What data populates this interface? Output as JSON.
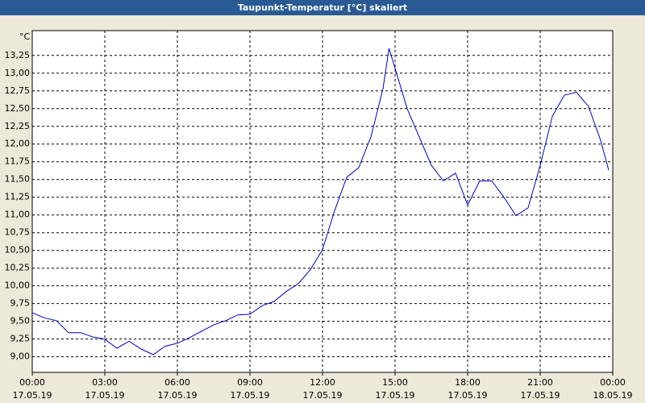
{
  "chart_data": {
    "type": "line",
    "title": "Taupunkt-Temperatur [°C] skaliert",
    "y_unit": "°C",
    "x": [
      "17.05.19 00:00",
      "17.05.19 00:30",
      "17.05.19 01:00",
      "17.05.19 01:30",
      "17.05.19 02:00",
      "17.05.19 02:30",
      "17.05.19 03:00",
      "17.05.19 03:30",
      "17.05.19 04:00",
      "17.05.19 04:30",
      "17.05.19 05:00",
      "17.05.19 05:30",
      "17.05.19 06:00",
      "17.05.19 06:30",
      "17.05.19 07:00",
      "17.05.19 07:30",
      "17.05.19 08:00",
      "17.05.19 08:30",
      "17.05.19 09:00",
      "17.05.19 09:30",
      "17.05.19 10:00",
      "17.05.19 10:30",
      "17.05.19 11:00",
      "17.05.19 11:30",
      "17.05.19 12:00",
      "17.05.19 12:30",
      "17.05.19 13:00",
      "17.05.19 13:30",
      "17.05.19 14:00",
      "17.05.19 14:30",
      "17.05.19 14:45",
      "17.05.19 15:00",
      "17.05.19 15:30",
      "17.05.19 16:00",
      "17.05.19 16:30",
      "17.05.19 17:00",
      "17.05.19 17:30",
      "17.05.19 18:00",
      "17.05.19 18:30",
      "17.05.19 19:00",
      "17.05.19 19:30",
      "17.05.19 20:00",
      "17.05.19 20:30",
      "17.05.19 21:00",
      "17.05.19 21:30",
      "17.05.19 22:00",
      "17.05.19 22:30",
      "17.05.19 23:00",
      "17.05.19 23:30",
      "17.05.19 23:50"
    ],
    "series": [
      {
        "name": "Taupunkt-Temperatur",
        "color": "#0000c0",
        "values": [
          9.62,
          9.55,
          9.51,
          9.34,
          9.34,
          9.28,
          9.25,
          9.12,
          9.22,
          9.11,
          9.03,
          9.15,
          9.19,
          9.27,
          9.36,
          9.45,
          9.51,
          9.59,
          9.6,
          9.72,
          9.78,
          9.92,
          10.03,
          10.23,
          10.51,
          11.06,
          11.53,
          11.67,
          12.1,
          12.78,
          13.35,
          13.07,
          12.5,
          12.1,
          11.7,
          11.48,
          11.59,
          11.14,
          11.48,
          11.48,
          11.25,
          10.99,
          11.1,
          11.7,
          12.39,
          12.69,
          12.73,
          12.53,
          12.05,
          11.63
        ]
      }
    ],
    "ylim": [
      8.78,
      13.6
    ],
    "yticks": [
      {
        "value": 9.0,
        "label": "9,00"
      },
      {
        "value": 9.25,
        "label": "9,25"
      },
      {
        "value": 9.5,
        "label": "9,50"
      },
      {
        "value": 9.75,
        "label": "9,75"
      },
      {
        "value": 10.0,
        "label": "10,00"
      },
      {
        "value": 10.25,
        "label": "10,25"
      },
      {
        "value": 10.5,
        "label": "10,50"
      },
      {
        "value": 10.75,
        "label": "10,75"
      },
      {
        "value": 11.0,
        "label": "11,00"
      },
      {
        "value": 11.25,
        "label": "11,25"
      },
      {
        "value": 11.5,
        "label": "11,50"
      },
      {
        "value": 11.75,
        "label": "11,75"
      },
      {
        "value": 12.0,
        "label": "12,00"
      },
      {
        "value": 12.25,
        "label": "12,25"
      },
      {
        "value": 12.5,
        "label": "12,50"
      },
      {
        "value": 12.75,
        "label": "12,75"
      },
      {
        "value": 13.0,
        "label": "13,00"
      },
      {
        "value": 13.25,
        "label": "13,25"
      }
    ],
    "xlim": [
      "17.05.19 00:00",
      "18.05.19 00:00"
    ],
    "xticks": [
      {
        "value": "17.05.19 00:00",
        "label": [
          "00:00",
          "17.05.19"
        ]
      },
      {
        "value": "17.05.19 03:00",
        "label": [
          "03:00",
          "17.05.19"
        ]
      },
      {
        "value": "17.05.19 06:00",
        "label": [
          "06:00",
          "17.05.19"
        ]
      },
      {
        "value": "17.05.19 09:00",
        "label": [
          "09:00",
          "17.05.19"
        ]
      },
      {
        "value": "17.05.19 12:00",
        "label": [
          "12:00",
          "17.05.19"
        ]
      },
      {
        "value": "17.05.19 15:00",
        "label": [
          "15:00",
          "17.05.19"
        ]
      },
      {
        "value": "17.05.19 18:00",
        "label": [
          "18:00",
          "17.05.19"
        ]
      },
      {
        "value": "17.05.19 21:00",
        "label": [
          "21:00",
          "17.05.19"
        ]
      },
      {
        "value": "18.05.19 00:00",
        "label": [
          "00:00",
          "18.05.19"
        ]
      }
    ],
    "grid": true
  }
}
